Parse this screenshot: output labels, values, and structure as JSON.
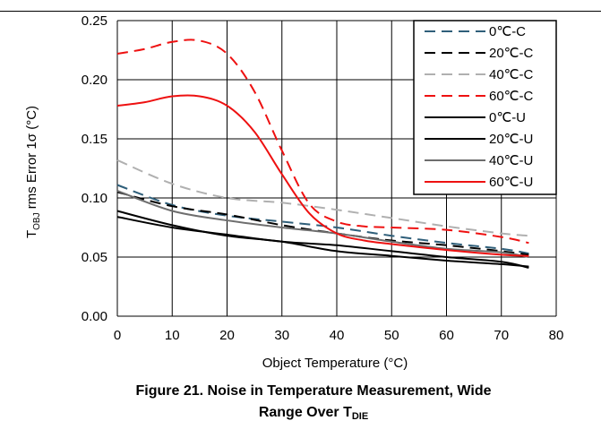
{
  "chart_data": {
    "type": "line",
    "xlabel": "Object Temperature (°C)",
    "ylabel": "T<sub>OBJ</sub> rms Error 1σ (°C)",
    "ylabel_main": "T",
    "ylabel_sub": "OBJ",
    "ylabel_rest": " rms Error 1σ (°C)",
    "xlim": [
      0,
      80
    ],
    "ylim": [
      0,
      0.25
    ],
    "xticks": [
      "0",
      "10",
      "20",
      "30",
      "40",
      "50",
      "60",
      "70",
      "80"
    ],
    "yticks": [
      "0.00",
      "0.05",
      "0.10",
      "0.15",
      "0.20",
      "0.25"
    ],
    "grid": true,
    "legend_position": "top-right",
    "series": [
      {
        "name": "0℃-C",
        "color": "#2f5f7a",
        "dash": true,
        "x": [
          0,
          10,
          20,
          30,
          40,
          50,
          60,
          70,
          75
        ],
        "y": [
          0.111,
          0.094,
          0.085,
          0.08,
          0.075,
          0.068,
          0.062,
          0.057,
          0.053
        ]
      },
      {
        "name": "20℃-C",
        "color": "#000000",
        "dash": true,
        "x": [
          0,
          10,
          20,
          30,
          40,
          50,
          60,
          70,
          75
        ],
        "y": [
          0.105,
          0.093,
          0.086,
          0.077,
          0.07,
          0.064,
          0.06,
          0.055,
          0.052
        ]
      },
      {
        "name": "40℃-C",
        "color": "#b0b0b0",
        "dash": true,
        "x": [
          0,
          10,
          20,
          30,
          40,
          50,
          60,
          70,
          75
        ],
        "y": [
          0.132,
          0.112,
          0.1,
          0.096,
          0.09,
          0.083,
          0.076,
          0.07,
          0.068
        ]
      },
      {
        "name": "60℃-C",
        "color": "#ee1111",
        "dash": true,
        "x": [
          0,
          5,
          10,
          15,
          20,
          25,
          30,
          35,
          40,
          45,
          50,
          60,
          70,
          75
        ],
        "y": [
          0.222,
          0.226,
          0.232,
          0.233,
          0.222,
          0.19,
          0.14,
          0.095,
          0.08,
          0.076,
          0.075,
          0.073,
          0.067,
          0.062
        ]
      },
      {
        "name": "0℃-U",
        "color": "#000000",
        "dash": false,
        "x": [
          0,
          10,
          20,
          30,
          40,
          50,
          60,
          70,
          75
        ],
        "y": [
          0.089,
          0.077,
          0.068,
          0.063,
          0.055,
          0.051,
          0.047,
          0.044,
          0.042
        ]
      },
      {
        "name": "20℃-U",
        "color": "#000000",
        "dash": false,
        "x": [
          0,
          10,
          20,
          30,
          40,
          50,
          60,
          70,
          75
        ],
        "y": [
          0.084,
          0.075,
          0.069,
          0.063,
          0.06,
          0.055,
          0.05,
          0.046,
          0.041
        ]
      },
      {
        "name": "40℃-U",
        "color": "#6e6e6e",
        "dash": false,
        "x": [
          0,
          10,
          20,
          30,
          40,
          50,
          60,
          70,
          75
        ],
        "y": [
          0.106,
          0.089,
          0.081,
          0.075,
          0.07,
          0.063,
          0.057,
          0.054,
          0.05
        ]
      },
      {
        "name": "60℃-U",
        "color": "#ee1111",
        "dash": false,
        "x": [
          0,
          5,
          10,
          15,
          20,
          25,
          30,
          35,
          40,
          45,
          50,
          60,
          70,
          75
        ],
        "y": [
          0.178,
          0.181,
          0.186,
          0.186,
          0.178,
          0.156,
          0.12,
          0.087,
          0.07,
          0.064,
          0.061,
          0.056,
          0.052,
          0.051
        ]
      }
    ]
  },
  "caption": {
    "line1": "Figure 21. Noise in Temperature Measurement, Wide",
    "line2_main": "Range Over T",
    "line2_sub": "DIE"
  }
}
